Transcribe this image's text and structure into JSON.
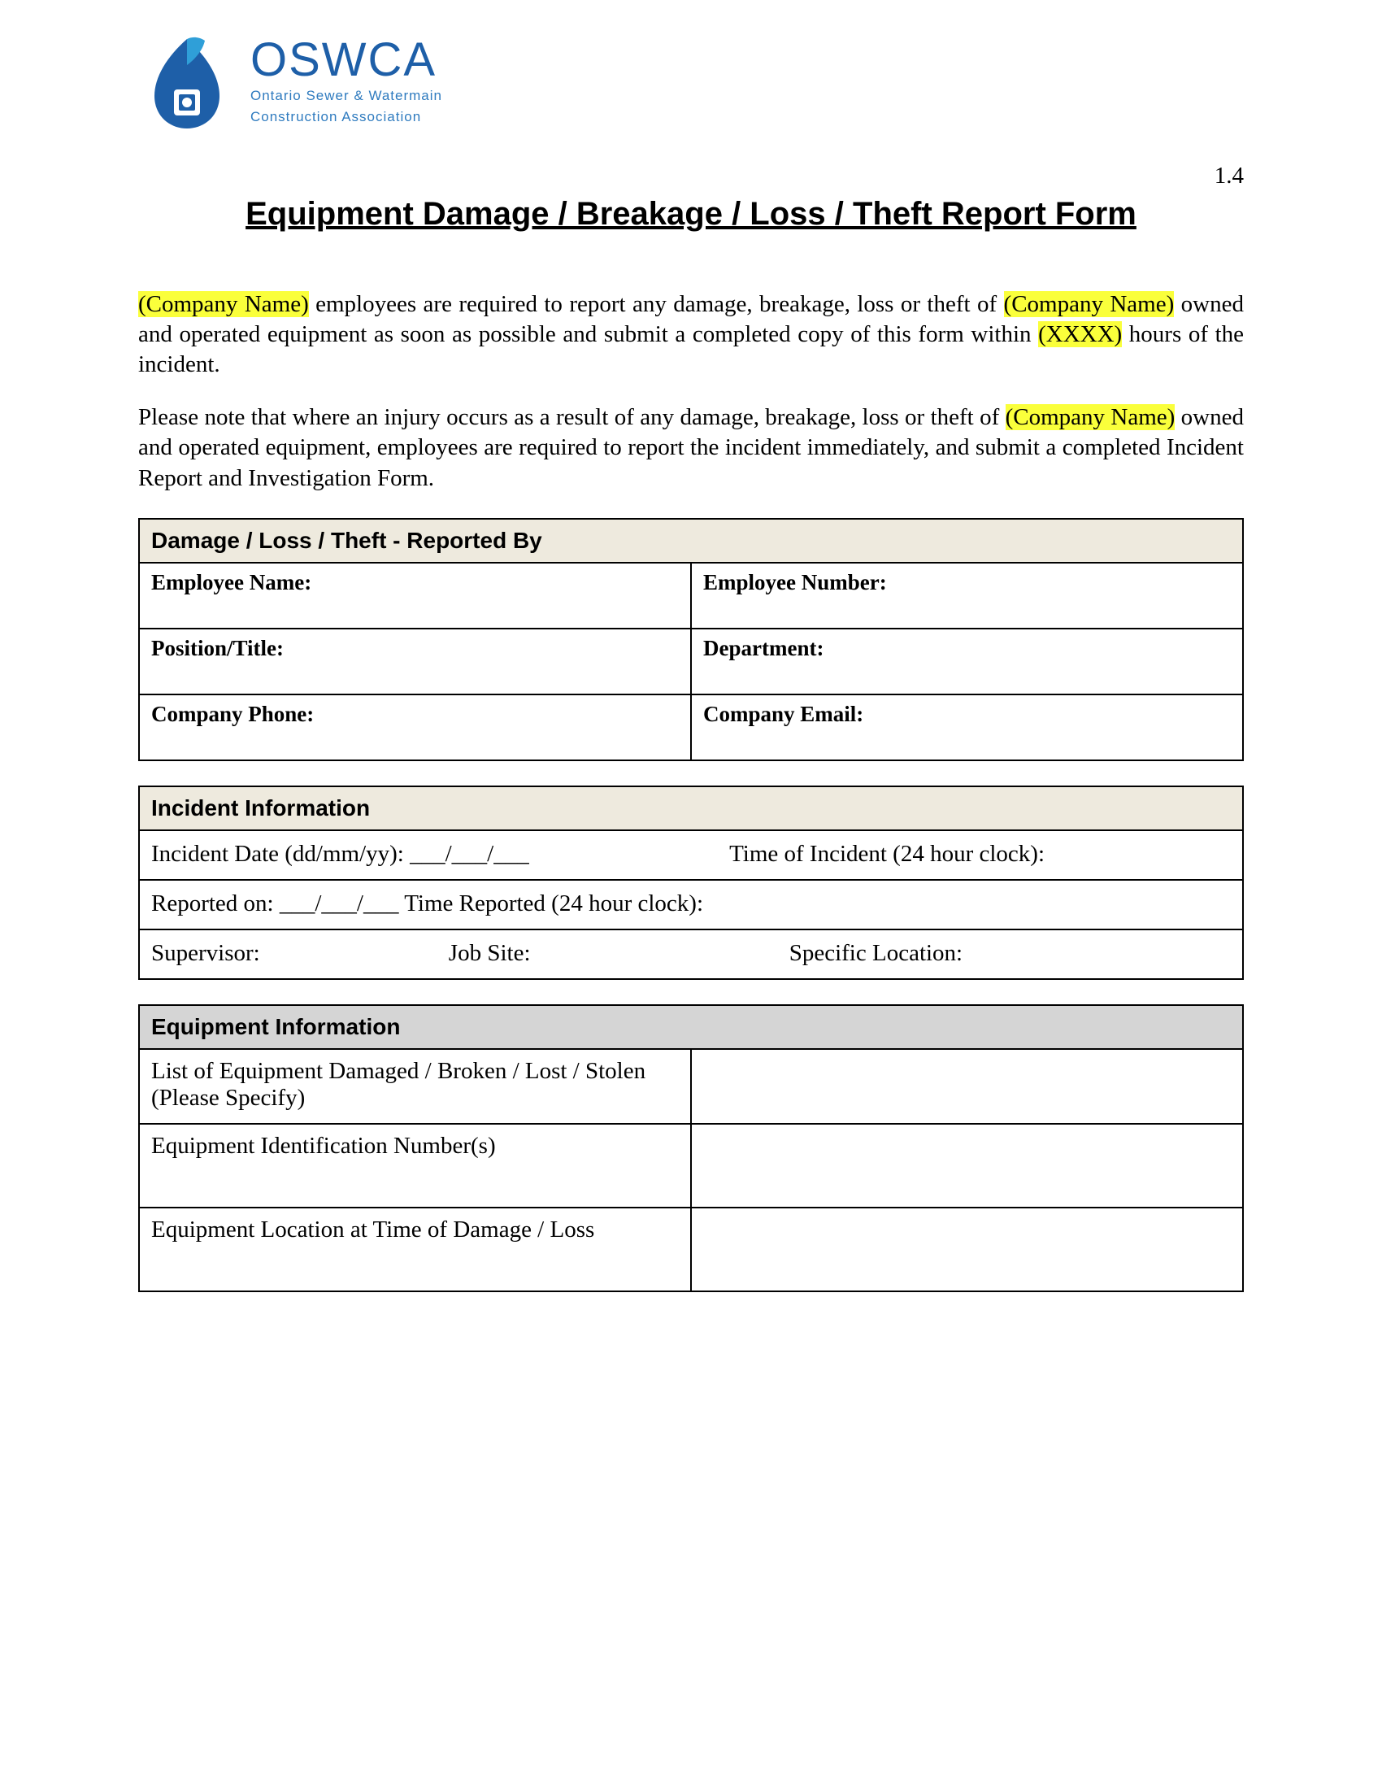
{
  "logo": {
    "acronym": "OSWCA",
    "line1": "Ontario Sewer & Watermain",
    "line2": "Construction Association",
    "primary_color": "#1e5fa8",
    "secondary_color": "#2f7bbf"
  },
  "page_number": "1.4",
  "title": "Equipment Damage / Breakage / Loss / Theft Report Form",
  "highlight_color": "#faff3b",
  "intro": {
    "company_placeholder": "(Company Name)",
    "hours_placeholder": "(XXXX)",
    "p1_seg1": "(Company Name)",
    "p1_seg2": " employees are required to report any damage, breakage, loss or theft of ",
    "p1_seg3": "(Company Name)",
    "p1_seg4": " owned and operated equipment as soon as possible and submit a completed copy of this form within ",
    "p1_seg5": "(XXXX)",
    "p1_seg6": " hours of the incident.",
    "p2_seg1": "Please note that where an injury occurs as a result of any damage, breakage, loss or theft of ",
    "p2_seg2": "(Company Name)",
    "p2_seg3": " owned and operated equipment, employees are required to report the incident immediately, and submit a completed Incident Report and Investigation Form."
  },
  "section1": {
    "header": "Damage / Loss / Theft - Reported By",
    "rows": [
      [
        "Employee Name:",
        "Employee Number:"
      ],
      [
        "Position/Title:",
        "Department:"
      ],
      [
        "Company Phone:",
        "Company Email:"
      ]
    ]
  },
  "section2": {
    "header": "Incident Information",
    "row1_a": "Incident Date (dd/mm/yy): ___/___/___",
    "row1_b": "Time of Incident (24 hour clock):",
    "row2": "Reported on: ___/___/___ Time Reported (24 hour clock):",
    "row3_a": "Supervisor:",
    "row3_b": "Job Site:",
    "row3_c": "Specific Location:"
  },
  "section3": {
    "header": "Equipment Information",
    "rows": [
      "List of Equipment Damaged / Broken / Lost / Stolen\n(Please Specify)",
      "Equipment Identification Number(s)",
      "Equipment Location at Time of Damage / Loss"
    ]
  }
}
